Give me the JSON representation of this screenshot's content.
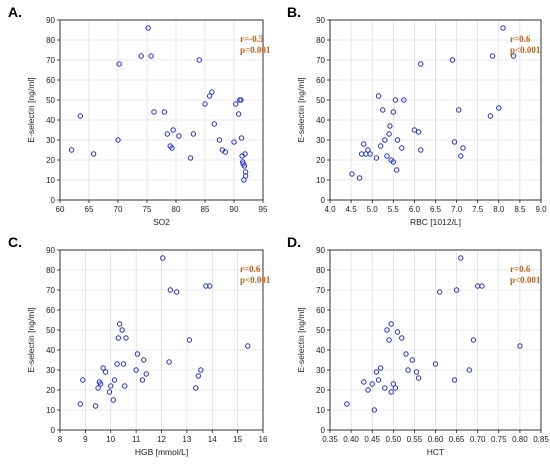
{
  "colors": {
    "points": "#1f2fd6",
    "stats": "#c0611b",
    "grid": "#d4d4d4"
  },
  "chart_data": [
    {
      "type": "scatter",
      "panel_label": "A.",
      "xlabel": "SO2",
      "ylabel": "E-selectin [ng/ml]",
      "xlim": [
        60,
        95
      ],
      "ylim": [
        0,
        90
      ],
      "xticks": [
        60,
        65,
        70,
        75,
        80,
        85,
        90,
        95
      ],
      "yticks": [
        0,
        10,
        20,
        30,
        40,
        50,
        60,
        70,
        80,
        90
      ],
      "xtick_labels": [
        "60",
        "65",
        "70",
        "75",
        "80",
        "85",
        "90",
        "95"
      ],
      "ytick_labels": [
        "0",
        "10",
        "20",
        "30",
        "40",
        "50",
        "60",
        "70",
        "80",
        "90"
      ],
      "grid": true,
      "annotations": [
        "r=-0.5",
        "p=0.001"
      ],
      "x": [
        62.0,
        63.5,
        65.8,
        70.0,
        70.2,
        74.0,
        75.2,
        75.7,
        76.2,
        78.0,
        78.5,
        79.0,
        79.3,
        79.5,
        80.5,
        82.5,
        83.0,
        84.0,
        85.0,
        85.8,
        86.2,
        86.6,
        87.5,
        88.0,
        88.5,
        90.0,
        90.3,
        90.8,
        91.0,
        91.2,
        91.3,
        91.4,
        91.5,
        91.6,
        91.8,
        92.0,
        92.0,
        91.7,
        91.9
      ],
      "y": [
        25,
        42,
        23,
        30,
        68,
        72,
        86,
        72,
        44,
        44,
        33,
        27,
        26,
        35,
        32,
        21,
        33,
        70,
        48,
        52,
        54,
        38,
        30,
        25,
        24,
        29,
        48,
        43,
        50,
        50,
        31,
        22,
        19,
        18,
        17,
        14,
        12,
        10,
        23
      ]
    },
    {
      "type": "scatter",
      "panel_label": "B.",
      "xlabel": "RBC [1012/L]",
      "ylabel": "E-selectin [ng/ml]",
      "xlim": [
        4.0,
        9.0
      ],
      "ylim": [
        0,
        90
      ],
      "xticks": [
        4.0,
        4.5,
        5.0,
        5.5,
        6.0,
        6.5,
        7.0,
        7.5,
        8.0,
        8.5,
        9.0
      ],
      "yticks": [
        0,
        10,
        20,
        30,
        40,
        50,
        60,
        70,
        80,
        90
      ],
      "xtick_labels": [
        "4.0",
        "4.5",
        "5.0",
        "5.5",
        "6.0",
        "6.5",
        "7.0",
        "7.5",
        "8.0",
        "8.5",
        "9.0"
      ],
      "ytick_labels": [
        "0",
        "10",
        "20",
        "30",
        "40",
        "50",
        "60",
        "70",
        "80",
        "90"
      ],
      "grid": true,
      "annotations": [
        "r=0.6",
        "p<0.001"
      ],
      "x": [
        4.52,
        4.7,
        4.75,
        4.8,
        4.85,
        4.9,
        4.95,
        5.1,
        5.15,
        5.2,
        5.25,
        5.3,
        5.35,
        5.4,
        5.42,
        5.45,
        5.5,
        5.5,
        5.55,
        5.58,
        5.6,
        5.7,
        5.75,
        6.0,
        6.1,
        6.15,
        6.15,
        6.9,
        6.95,
        7.05,
        7.1,
        7.15,
        7.8,
        7.85,
        8.0,
        8.1,
        8.35
      ],
      "y": [
        13,
        11,
        23,
        28,
        23,
        25,
        23,
        21,
        52,
        27,
        45,
        30,
        22,
        33,
        37,
        20,
        44,
        19,
        50,
        15,
        30,
        26,
        50,
        35,
        34,
        25,
        68,
        70,
        29,
        45,
        22,
        26,
        42,
        72,
        46,
        86,
        72
      ]
    },
    {
      "type": "scatter",
      "panel_label": "C.",
      "xlabel": "HGB [mmol/L]",
      "ylabel": "E-selectin [ng/ml]",
      "xlim": [
        8,
        16
      ],
      "ylim": [
        0,
        90
      ],
      "xticks": [
        8,
        9,
        10,
        11,
        12,
        13,
        14,
        15,
        16
      ],
      "yticks": [
        0,
        10,
        20,
        30,
        40,
        50,
        60,
        70,
        80,
        90
      ],
      "xtick_labels": [
        "8",
        "9",
        "10",
        "11",
        "12",
        "13",
        "14",
        "15",
        "16"
      ],
      "ytick_labels": [
        "0",
        "10",
        "20",
        "30",
        "40",
        "50",
        "60",
        "70",
        "80",
        "90"
      ],
      "grid": true,
      "annotations": [
        "r=0.6",
        "p<0.001"
      ],
      "x": [
        8.8,
        8.9,
        9.4,
        9.5,
        9.55,
        9.6,
        9.7,
        9.8,
        9.95,
        10.0,
        10.1,
        10.15,
        10.25,
        10.3,
        10.35,
        10.45,
        10.5,
        10.55,
        10.6,
        11.0,
        11.05,
        11.25,
        11.3,
        11.4,
        12.05,
        12.3,
        12.35,
        12.6,
        13.1,
        13.35,
        13.45,
        13.55,
        13.75,
        13.9,
        15.4
      ],
      "y": [
        13,
        25,
        12,
        21,
        24,
        23,
        31,
        29,
        19,
        22,
        15,
        25,
        33,
        46,
        53,
        50,
        33,
        22,
        46,
        30,
        38,
        25,
        35,
        28,
        86,
        34,
        70,
        69,
        45,
        21,
        27,
        30,
        72,
        72,
        42
      ]
    },
    {
      "type": "scatter",
      "panel_label": "D.",
      "xlabel": "HCT",
      "ylabel": "E-selectin [ng/ml]",
      "xlim": [
        0.35,
        0.85
      ],
      "ylim": [
        0,
        90
      ],
      "xticks": [
        0.35,
        0.4,
        0.45,
        0.5,
        0.55,
        0.6,
        0.65,
        0.7,
        0.75,
        0.8,
        0.85
      ],
      "yticks": [
        0,
        10,
        20,
        30,
        40,
        50,
        60,
        70,
        80,
        90
      ],
      "xtick_labels": [
        "0.35",
        "0.40",
        "0.45",
        "0.50",
        "0.55",
        "0.60",
        "0.65",
        "0.70",
        "0.75",
        "0.80",
        "0.85"
      ],
      "ytick_labels": [
        "0",
        "10",
        "20",
        "30",
        "40",
        "50",
        "60",
        "70",
        "80",
        "90"
      ],
      "grid": true,
      "annotations": [
        "r=0.6",
        "p<0.001"
      ],
      "x": [
        0.39,
        0.43,
        0.44,
        0.45,
        0.455,
        0.46,
        0.465,
        0.47,
        0.48,
        0.485,
        0.49,
        0.495,
        0.495,
        0.5,
        0.505,
        0.51,
        0.52,
        0.53,
        0.535,
        0.545,
        0.555,
        0.56,
        0.6,
        0.61,
        0.645,
        0.65,
        0.66,
        0.68,
        0.69,
        0.7,
        0.71,
        0.8
      ],
      "y": [
        13,
        24,
        20,
        23,
        10,
        29,
        25,
        31,
        21,
        50,
        45,
        53,
        19,
        23,
        21,
        49,
        46,
        38,
        30,
        35,
        29,
        26,
        33,
        69,
        25,
        70,
        86,
        30,
        45,
        72,
        72,
        42
      ]
    }
  ]
}
